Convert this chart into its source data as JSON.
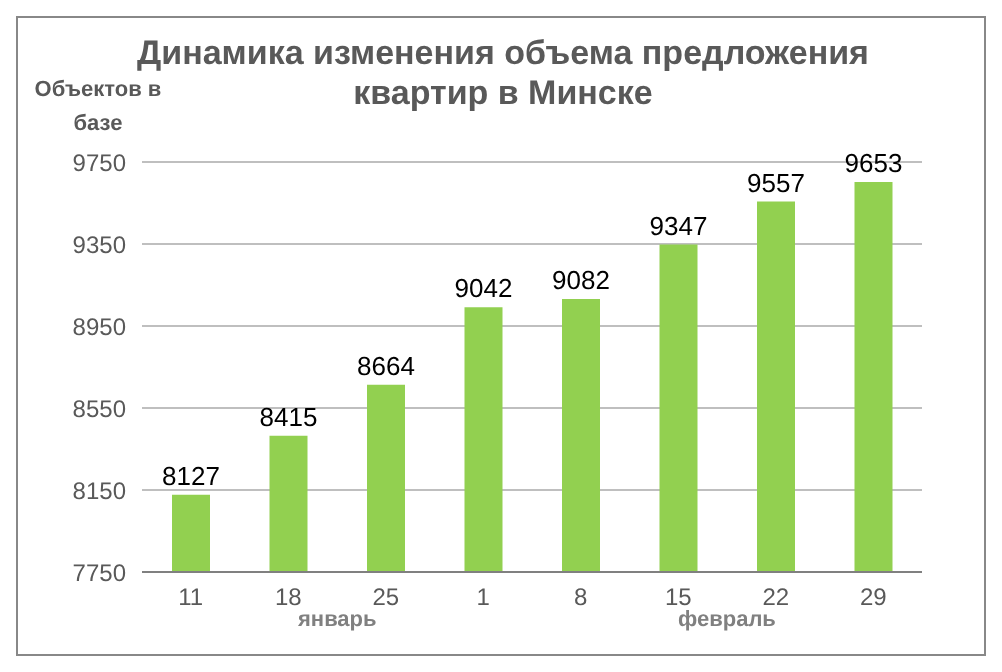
{
  "chart_data": {
    "type": "bar",
    "title": "Динамика изменения объема предложения квартир в Минске",
    "ylabel": "Объектов в базе",
    "categories": [
      "11",
      "18",
      "25",
      "1",
      "8",
      "15",
      "22",
      "29"
    ],
    "series": [
      {
        "color": "#92d050",
        "values": [
          8127,
          8415,
          8664,
          9042,
          9082,
          9347,
          9557,
          9653
        ]
      }
    ],
    "ylim": [
      7750,
      9750
    ],
    "yticks": [
      7750,
      8150,
      8550,
      8950,
      9350,
      9750
    ],
    "grid": "y",
    "data_labels": true,
    "legend": false,
    "annotations": [
      "январь",
      "февраль"
    ]
  }
}
